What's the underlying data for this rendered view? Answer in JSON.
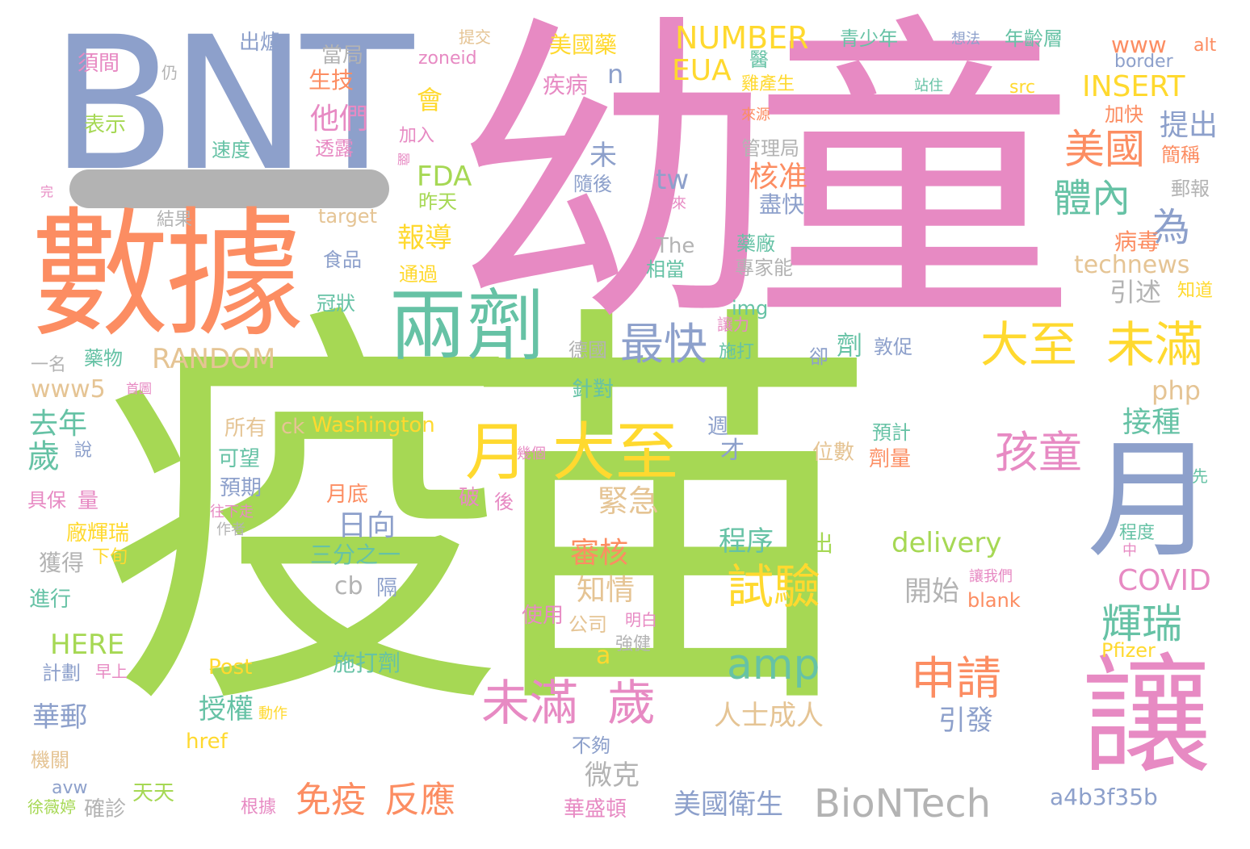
{
  "palette": {
    "green": "#a6d854",
    "pink": "#e78ac3",
    "blue": "#8da0cb",
    "orange": "#fc8d62",
    "teal": "#66c2a5",
    "yellow": "#ffd92f",
    "tan": "#e5c494",
    "gray": "#b3b3b3"
  },
  "words": [
    {
      "text": "疫苗",
      "color": "green"
    },
    {
      "text": "幼童",
      "color": "pink"
    },
    {
      "text": "BNT",
      "color": "blue"
    },
    {
      "text": "數據",
      "color": "orange"
    },
    {
      "text": "月",
      "color": "blue"
    },
    {
      "text": "讓",
      "color": "pink"
    },
    {
      "text": "兩劑",
      "color": "teal"
    },
    {
      "text": "大至",
      "color": "yellow"
    },
    {
      "text": "月",
      "color": "yellow"
    },
    {
      "text": "未滿",
      "color": "pink"
    },
    {
      "text": "歲",
      "color": "pink"
    },
    {
      "text": "大至",
      "color": "yellow"
    },
    {
      "text": "未滿",
      "color": "yellow"
    },
    {
      "text": "BioNTech",
      "color": "gray"
    },
    {
      "text": "體內",
      "color": "teal"
    },
    {
      "text": "美國",
      "color": "orange"
    },
    {
      "text": "孩童",
      "color": "pink"
    },
    {
      "text": "最快",
      "color": "blue"
    },
    {
      "text": "申請",
      "color": "orange"
    },
    {
      "text": "試驗",
      "color": "yellow"
    },
    {
      "text": "amp",
      "color": "teal"
    },
    {
      "text": "輝瑞",
      "color": "teal"
    },
    {
      "text": "免疫",
      "color": "orange"
    },
    {
      "text": "反應",
      "color": "orange"
    },
    {
      "text": "為",
      "color": "blue"
    },
    {
      "text": "COVID",
      "color": "pink"
    },
    {
      "text": "NUMBER",
      "color": "yellow"
    },
    {
      "text": "EUA",
      "color": "yellow"
    },
    {
      "text": "INSERT",
      "color": "yellow"
    },
    {
      "text": "RANDOM",
      "color": "tan"
    },
    {
      "text": "他們",
      "color": "pink"
    },
    {
      "text": "生技",
      "color": "orange"
    },
    {
      "text": "核准",
      "color": "orange"
    },
    {
      "text": "提出",
      "color": "blue"
    },
    {
      "text": "歲",
      "color": "teal"
    },
    {
      "text": "去年",
      "color": "teal"
    },
    {
      "text": "接種",
      "color": "teal"
    },
    {
      "text": "緊急",
      "color": "tan"
    },
    {
      "text": "審核",
      "color": "orange"
    },
    {
      "text": "知情",
      "color": "tan"
    },
    {
      "text": "日向",
      "color": "blue"
    },
    {
      "text": "程序",
      "color": "teal"
    },
    {
      "text": "指出",
      "color": "green"
    },
    {
      "text": "delivery",
      "color": "green"
    },
    {
      "text": "開始",
      "color": "gray"
    },
    {
      "text": "人士成人",
      "color": "tan"
    },
    {
      "text": "引發",
      "color": "blue"
    },
    {
      "text": "授權",
      "color": "teal"
    },
    {
      "text": "微克",
      "color": "gray"
    },
    {
      "text": "美國衛生",
      "color": "blue"
    },
    {
      "text": "a4b3f35b",
      "color": "blue"
    },
    {
      "text": "technews",
      "color": "tan"
    },
    {
      "text": "引述",
      "color": "gray"
    },
    {
      "text": "病毒",
      "color": "orange"
    },
    {
      "text": "php",
      "color": "tan"
    },
    {
      "text": "報導",
      "color": "yellow"
    },
    {
      "text": "FDA",
      "color": "green"
    },
    {
      "text": "tw",
      "color": "blue"
    },
    {
      "text": "HERE",
      "color": "green"
    },
    {
      "text": "華郵",
      "color": "blue"
    },
    {
      "text": "www5",
      "color": "tan"
    },
    {
      "text": "Washington",
      "color": "yellow"
    },
    {
      "text": "cb",
      "color": "gray"
    },
    {
      "text": "隔",
      "color": "blue"
    },
    {
      "text": "三分之一",
      "color": "teal"
    },
    {
      "text": "Post",
      "color": "yellow"
    },
    {
      "text": "施打劑",
      "color": "teal"
    },
    {
      "text": "保護",
      "color": "green"
    },
    {
      "text": "a",
      "color": "yellow"
    },
    {
      "text": "href",
      "color": "yellow"
    },
    {
      "text": "動作",
      "color": "yellow"
    },
    {
      "text": "不夠",
      "color": "blue"
    },
    {
      "text": "華盛頓",
      "color": "pink"
    },
    {
      "text": "天天",
      "color": "green"
    },
    {
      "text": "確診",
      "color": "gray"
    },
    {
      "text": "根據",
      "color": "pink"
    },
    {
      "text": "徐薇婷",
      "color": "green"
    },
    {
      "text": "avw",
      "color": "blue"
    },
    {
      "text": "機關",
      "color": "tan"
    },
    {
      "text": "計劃",
      "color": "blue"
    },
    {
      "text": "早上",
      "color": "pink"
    },
    {
      "text": "進行",
      "color": "teal"
    },
    {
      "text": "獲得",
      "color": "gray"
    },
    {
      "text": "下旬",
      "color": "yellow"
    },
    {
      "text": "廠輝瑞",
      "color": "yellow"
    },
    {
      "text": "具保",
      "color": "pink"
    },
    {
      "text": "量",
      "color": "pink"
    },
    {
      "text": "說",
      "color": "blue"
    },
    {
      "text": "作者",
      "color": "gray"
    },
    {
      "text": "往下走",
      "color": "pink"
    },
    {
      "text": "預期",
      "color": "blue"
    },
    {
      "text": "可望",
      "color": "teal"
    },
    {
      "text": "所有",
      "color": "tan"
    },
    {
      "text": "ck",
      "color": "tan"
    },
    {
      "text": "月底",
      "color": "orange"
    },
    {
      "text": "破",
      "color": "pink"
    },
    {
      "text": "後",
      "color": "pink"
    },
    {
      "text": "幾個",
      "color": "pink"
    },
    {
      "text": "才",
      "color": "blue"
    },
    {
      "text": "週",
      "color": "blue"
    },
    {
      "text": "使用",
      "color": "pink"
    },
    {
      "text": "公司",
      "color": "tan"
    },
    {
      "text": "明白",
      "color": "pink"
    },
    {
      "text": "強健",
      "color": "gray"
    },
    {
      "text": "針對",
      "color": "teal"
    },
    {
      "text": "德國",
      "color": "gray"
    },
    {
      "text": "施打",
      "color": "teal"
    },
    {
      "text": "讓力",
      "color": "pink"
    },
    {
      "text": "卻",
      "color": "blue"
    },
    {
      "text": "劑",
      "color": "teal"
    },
    {
      "text": "敦促",
      "color": "blue"
    },
    {
      "text": "位數",
      "color": "tan"
    },
    {
      "text": "劑量",
      "color": "orange"
    },
    {
      "text": "預計",
      "color": "teal"
    },
    {
      "text": "blank",
      "color": "orange"
    },
    {
      "text": "讓我們",
      "color": "pink"
    },
    {
      "text": "Pfizer",
      "color": "yellow"
    },
    {
      "text": "先",
      "color": "teal"
    },
    {
      "text": "程度",
      "color": "teal"
    },
    {
      "text": "中",
      "color": "pink"
    },
    {
      "text": "img",
      "color": "teal"
    },
    {
      "text": "藥廠",
      "color": "teal"
    },
    {
      "text": "專家能",
      "color": "gray"
    },
    {
      "text": "相當",
      "color": "teal"
    },
    {
      "text": "The",
      "color": "gray"
    },
    {
      "text": "出來",
      "color": "pink"
    },
    {
      "text": "盡快",
      "color": "blue"
    },
    {
      "text": "隨後",
      "color": "blue"
    },
    {
      "text": "未",
      "color": "blue"
    },
    {
      "text": "n",
      "color": "blue"
    },
    {
      "text": "會",
      "color": "yellow"
    },
    {
      "text": "疾病",
      "color": "pink"
    },
    {
      "text": "美國藥",
      "color": "yellow"
    },
    {
      "text": "zoneid",
      "color": "pink"
    },
    {
      "text": "提交",
      "color": "tan"
    },
    {
      "text": "出爐",
      "color": "blue"
    },
    {
      "text": "當局",
      "color": "gray"
    },
    {
      "text": "須間",
      "color": "pink"
    },
    {
      "text": "仍",
      "color": "gray"
    },
    {
      "text": "表示",
      "color": "green"
    },
    {
      "text": "速度",
      "color": "teal"
    },
    {
      "text": "透露",
      "color": "pink"
    },
    {
      "text": "加入",
      "color": "pink"
    },
    {
      "text": "腳",
      "color": "pink"
    },
    {
      "text": "昨天",
      "color": "green"
    },
    {
      "text": "通過",
      "color": "yellow"
    },
    {
      "text": "食品",
      "color": "blue"
    },
    {
      "text": "target",
      "color": "tan"
    },
    {
      "text": "結果",
      "color": "gray"
    },
    {
      "text": "完",
      "color": "pink"
    },
    {
      "text": "冠狀",
      "color": "teal"
    },
    {
      "text": "藥物",
      "color": "teal"
    },
    {
      "text": "一名",
      "color": "gray"
    },
    {
      "text": "首圖",
      "color": "pink"
    },
    {
      "text": "醫",
      "color": "teal"
    },
    {
      "text": "雞產生",
      "color": "yellow"
    },
    {
      "text": "來源",
      "color": "orange"
    },
    {
      "text": "管理局",
      "color": "gray"
    },
    {
      "text": "站住",
      "color": "teal"
    },
    {
      "text": "青少年",
      "color": "teal"
    },
    {
      "text": "想法",
      "color": "blue"
    },
    {
      "text": "年齡層",
      "color": "teal"
    },
    {
      "text": "src",
      "color": "yellow"
    },
    {
      "text": "www",
      "color": "orange"
    },
    {
      "text": "alt",
      "color": "orange"
    },
    {
      "text": "border",
      "color": "blue"
    },
    {
      "text": "加快",
      "color": "orange"
    },
    {
      "text": "簡稱",
      "color": "orange"
    },
    {
      "text": "郵報",
      "color": "gray"
    },
    {
      "text": "知道",
      "color": "yellow"
    }
  ]
}
